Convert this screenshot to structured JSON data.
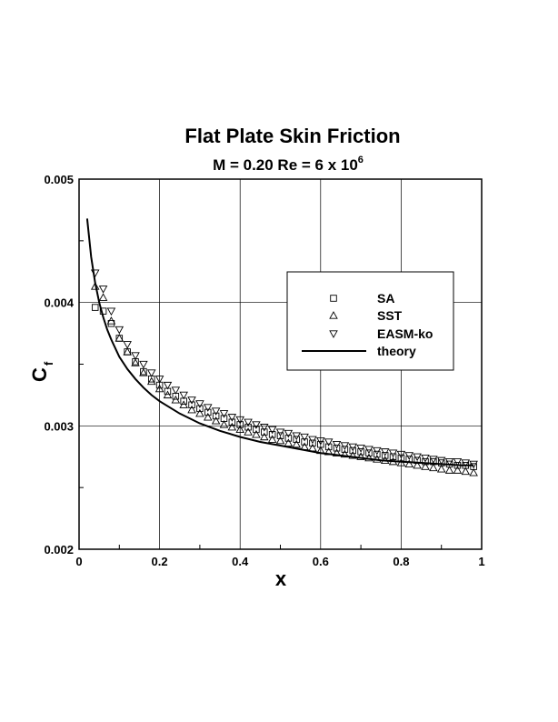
{
  "chart_data": {
    "type": "scatter",
    "title": "Flat Plate Skin Friction",
    "subtitle": "M = 0.20   Re = 6 x 10",
    "subtitle_exponent": "6",
    "xlabel": "x",
    "ylabel": "C",
    "ylabel_subscript": "f",
    "xlim": [
      0,
      1
    ],
    "ylim": [
      0.002,
      0.005
    ],
    "xticks": [
      "0",
      "0.2",
      "0.4",
      "0.6",
      "0.8",
      "1"
    ],
    "yticks": [
      "0.002",
      "0.003",
      "0.004",
      "0.005"
    ],
    "grid": true,
    "legend_position": "top-right",
    "series": [
      {
        "name": "SA",
        "marker": "square",
        "x": [
          0.04,
          0.06,
          0.08,
          0.1,
          0.12,
          0.14,
          0.16,
          0.18,
          0.2,
          0.22,
          0.24,
          0.26,
          0.28,
          0.3,
          0.32,
          0.34,
          0.36,
          0.38,
          0.4,
          0.42,
          0.44,
          0.46,
          0.48,
          0.5,
          0.52,
          0.54,
          0.56,
          0.58,
          0.6,
          0.62,
          0.64,
          0.66,
          0.68,
          0.7,
          0.72,
          0.74,
          0.76,
          0.78,
          0.8,
          0.82,
          0.84,
          0.86,
          0.88,
          0.9,
          0.92,
          0.94,
          0.96,
          0.98
        ],
        "values": [
          0.00396,
          0.00393,
          0.00383,
          0.00371,
          0.0036,
          0.00352,
          0.00344,
          0.00338,
          0.00333,
          0.00328,
          0.00324,
          0.0032,
          0.00317,
          0.00314,
          0.00311,
          0.00308,
          0.00306,
          0.00303,
          0.00301,
          0.00299,
          0.00297,
          0.00295,
          0.00293,
          0.00292,
          0.0029,
          0.00289,
          0.00287,
          0.00286,
          0.00285,
          0.00283,
          0.00282,
          0.00281,
          0.0028,
          0.00279,
          0.00278,
          0.00277,
          0.00276,
          0.00275,
          0.00274,
          0.00273,
          0.00272,
          0.00271,
          0.00271,
          0.0027,
          0.00269,
          0.00268,
          0.00268,
          0.00267
        ]
      },
      {
        "name": "SST",
        "marker": "triangle-up",
        "x": [
          0.04,
          0.06,
          0.08,
          0.1,
          0.12,
          0.14,
          0.16,
          0.18,
          0.2,
          0.22,
          0.24,
          0.26,
          0.28,
          0.3,
          0.32,
          0.34,
          0.36,
          0.38,
          0.4,
          0.42,
          0.44,
          0.46,
          0.48,
          0.5,
          0.52,
          0.54,
          0.56,
          0.58,
          0.6,
          0.62,
          0.64,
          0.66,
          0.68,
          0.7,
          0.72,
          0.74,
          0.76,
          0.78,
          0.8,
          0.82,
          0.84,
          0.86,
          0.88,
          0.9,
          0.92,
          0.94,
          0.96,
          0.98
        ],
        "values": [
          0.00413,
          0.00404,
          0.00385,
          0.00371,
          0.0036,
          0.00351,
          0.00343,
          0.00336,
          0.0033,
          0.00325,
          0.00321,
          0.00317,
          0.00313,
          0.0031,
          0.00307,
          0.00304,
          0.00301,
          0.00299,
          0.00297,
          0.00295,
          0.00293,
          0.00291,
          0.00289,
          0.00288,
          0.00286,
          0.00285,
          0.00283,
          0.00282,
          0.0028,
          0.00279,
          0.00278,
          0.00277,
          0.00276,
          0.00275,
          0.00274,
          0.00273,
          0.00272,
          0.00271,
          0.0027,
          0.00269,
          0.00268,
          0.00267,
          0.00266,
          0.00265,
          0.00264,
          0.00264,
          0.00263,
          0.00262
        ]
      },
      {
        "name": "EASM-ko",
        "marker": "triangle-down",
        "x": [
          0.04,
          0.06,
          0.08,
          0.1,
          0.12,
          0.14,
          0.16,
          0.18,
          0.2,
          0.22,
          0.24,
          0.26,
          0.28,
          0.3,
          0.32,
          0.34,
          0.36,
          0.38,
          0.4,
          0.42,
          0.44,
          0.46,
          0.48,
          0.5,
          0.52,
          0.54,
          0.56,
          0.58,
          0.6,
          0.62,
          0.64,
          0.66,
          0.68,
          0.7,
          0.72,
          0.74,
          0.76,
          0.78,
          0.8,
          0.82,
          0.84,
          0.86,
          0.88,
          0.9,
          0.92,
          0.94,
          0.96,
          0.98
        ],
        "values": [
          0.00424,
          0.00411,
          0.00393,
          0.00378,
          0.00366,
          0.00357,
          0.0035,
          0.00343,
          0.00338,
          0.00333,
          0.00329,
          0.00325,
          0.00321,
          0.00318,
          0.00315,
          0.00312,
          0.0031,
          0.00307,
          0.00305,
          0.00303,
          0.00301,
          0.00299,
          0.00297,
          0.00295,
          0.00294,
          0.00292,
          0.00291,
          0.00289,
          0.00288,
          0.00287,
          0.00285,
          0.00284,
          0.00283,
          0.00282,
          0.00281,
          0.0028,
          0.00279,
          0.00278,
          0.00277,
          0.00276,
          0.00275,
          0.00274,
          0.00273,
          0.00272,
          0.00271,
          0.00271,
          0.0027,
          0.00269
        ]
      },
      {
        "name": "theory",
        "marker": "line",
        "x": [
          0.02,
          0.03,
          0.04,
          0.05,
          0.06,
          0.07,
          0.08,
          0.1,
          0.12,
          0.14,
          0.16,
          0.18,
          0.2,
          0.25,
          0.3,
          0.35,
          0.4,
          0.45,
          0.5,
          0.55,
          0.6,
          0.65,
          0.7,
          0.75,
          0.8,
          0.85,
          0.9,
          0.95,
          0.98
        ],
        "values": [
          0.00468,
          0.00437,
          0.00416,
          0.004,
          0.00388,
          0.00378,
          0.0037,
          0.00356,
          0.00346,
          0.00338,
          0.00331,
          0.00325,
          0.0032,
          0.0031,
          0.00302,
          0.00296,
          0.00291,
          0.00287,
          0.00284,
          0.00281,
          0.00278,
          0.00276,
          0.00274,
          0.00272,
          0.00271,
          0.0027,
          0.00269,
          0.00268,
          0.00268
        ]
      }
    ]
  }
}
